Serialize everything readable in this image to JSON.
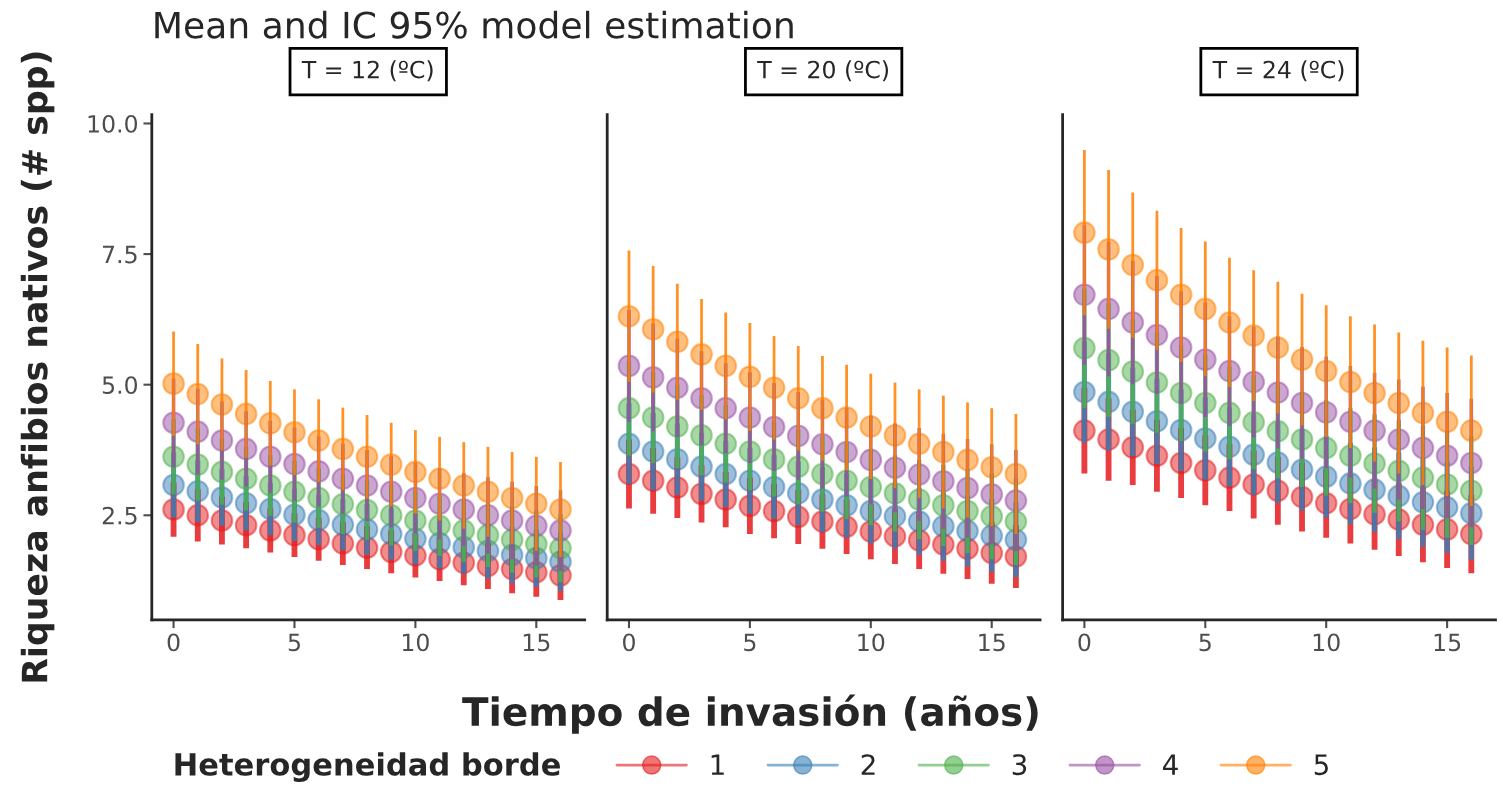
{
  "chart_data": [
    {
      "type": "scatter",
      "title": "Mean and IC 95% model estimation",
      "subtitle": "T = 12 (ºC)",
      "ylabel": "Riqueza anfibios nativos (# spp)",
      "legend_title": "Heterogeneidad borde",
      "legend": "bottom",
      "marker": "circle",
      "grid": false,
      "x": [
        0,
        1,
        2,
        3,
        4,
        5,
        6,
        7,
        8,
        9,
        10,
        11,
        12,
        13,
        14,
        15,
        16
      ],
      "xlim": [
        -0.9,
        17
      ],
      "xticks": [
        0,
        5,
        10,
        15
      ],
      "ylim": [
        0.5,
        10.17
      ],
      "yticks": [
        {
          "value": 2.5,
          "label": "2.5"
        },
        {
          "value": 5,
          "label": "5.0"
        },
        {
          "value": 7.5,
          "label": "7.5"
        },
        {
          "value": 10,
          "label": "10.0"
        }
      ],
      "series": [
        {
          "name": "1",
          "color": "#e41a1c",
          "values": [
            2.61,
            2.5,
            2.4,
            2.31,
            2.21,
            2.12,
            2.04,
            1.96,
            1.88,
            1.8,
            1.73,
            1.66,
            1.59,
            1.53,
            1.47,
            1.41,
            1.35
          ],
          "errors": [
            0.52,
            0.5,
            0.46,
            0.44,
            0.42,
            0.42,
            0.41,
            0.41,
            0.41,
            0.41,
            0.42,
            0.42,
            0.43,
            0.44,
            0.46,
            0.47,
            0.47
          ]
        },
        {
          "name": "2",
          "color": "#377eb8",
          "values": [
            3.08,
            2.96,
            2.84,
            2.73,
            2.62,
            2.51,
            2.41,
            2.32,
            2.23,
            2.14,
            2.05,
            1.97,
            1.89,
            1.82,
            1.74,
            1.68,
            1.61
          ],
          "errors": [
            0.62,
            0.59,
            0.54,
            0.52,
            0.5,
            0.5,
            0.48,
            0.49,
            0.49,
            0.49,
            0.49,
            0.49,
            0.51,
            0.53,
            0.54,
            0.55,
            0.56
          ]
        },
        {
          "name": "3",
          "color": "#4daf4a",
          "values": [
            3.62,
            3.47,
            3.33,
            3.2,
            3.07,
            2.95,
            2.83,
            2.71,
            2.6,
            2.5,
            2.4,
            2.3,
            2.21,
            2.12,
            2.03,
            1.95,
            1.87
          ],
          "errors": [
            0.72,
            0.69,
            0.63,
            0.61,
            0.58,
            0.59,
            0.57,
            0.57,
            0.57,
            0.58,
            0.58,
            0.58,
            0.6,
            0.61,
            0.63,
            0.64,
            0.65
          ]
        },
        {
          "name": "4",
          "color": "#984ea3",
          "values": [
            4.27,
            4.1,
            3.93,
            3.77,
            3.62,
            3.48,
            3.34,
            3.2,
            3.07,
            2.95,
            2.83,
            2.72,
            2.61,
            2.5,
            2.4,
            2.3,
            2.21
          ],
          "errors": [
            0.85,
            0.82,
            0.75,
            0.72,
            0.69,
            0.7,
            0.67,
            0.67,
            0.68,
            0.68,
            0.68,
            0.68,
            0.7,
            0.73,
            0.74,
            0.76,
            0.77
          ]
        },
        {
          "name": "5",
          "color": "#ff7f00",
          "values": [
            5.02,
            4.82,
            4.62,
            4.44,
            4.26,
            4.09,
            3.93,
            3.77,
            3.62,
            3.47,
            3.33,
            3.2,
            3.07,
            2.95,
            2.83,
            2.72,
            2.61
          ],
          "errors": [
            1.0,
            0.96,
            0.88,
            0.84,
            0.81,
            0.82,
            0.79,
            0.79,
            0.8,
            0.8,
            0.8,
            0.8,
            0.83,
            0.86,
            0.88,
            0.9,
            0.91
          ]
        }
      ]
    },
    {
      "type": "scatter",
      "subtitle": "T = 20 (ºC)",
      "xlabel": "Tiempo de invasión (años)",
      "marker": "circle",
      "grid": false,
      "tick_labels": "x",
      "x": [
        0,
        1,
        2,
        3,
        4,
        5,
        6,
        7,
        8,
        9,
        10,
        11,
        12,
        13,
        14,
        15,
        16
      ],
      "xlim": [
        -0.9,
        17
      ],
      "xticks": [
        0,
        5,
        10,
        15
      ],
      "ylim": [
        0.5,
        10.17
      ],
      "series": [
        {
          "color": "#e41a1c",
          "values": [
            3.29,
            3.16,
            3.03,
            2.91,
            2.8,
            2.68,
            2.58,
            2.47,
            2.38,
            2.28,
            2.19,
            2.1,
            2.02,
            1.94,
            1.86,
            1.78,
            1.71
          ],
          "errors": [
            0.66,
            0.63,
            0.58,
            0.55,
            0.53,
            0.54,
            0.52,
            0.52,
            0.52,
            0.52,
            0.53,
            0.53,
            0.55,
            0.56,
            0.58,
            0.59,
            0.6
          ]
        },
        {
          "color": "#377eb8",
          "values": [
            3.87,
            3.72,
            3.57,
            3.43,
            3.29,
            3.16,
            3.04,
            2.92,
            2.8,
            2.69,
            2.58,
            2.48,
            2.38,
            2.29,
            2.2,
            2.11,
            2.03
          ],
          "errors": [
            0.77,
            0.74,
            0.68,
            0.65,
            0.63,
            0.63,
            0.61,
            0.61,
            0.62,
            0.62,
            0.62,
            0.62,
            0.64,
            0.66,
            0.68,
            0.7,
            0.71
          ]
        },
        {
          "color": "#4daf4a",
          "values": [
            4.55,
            4.37,
            4.2,
            4.03,
            3.87,
            3.72,
            3.57,
            3.43,
            3.29,
            3.16,
            3.04,
            2.92,
            2.8,
            2.69,
            2.58,
            2.48,
            2.38
          ],
          "errors": [
            0.91,
            0.87,
            0.8,
            0.77,
            0.74,
            0.74,
            0.71,
            0.72,
            0.72,
            0.73,
            0.73,
            0.73,
            0.76,
            0.78,
            0.8,
            0.82,
            0.83
          ]
        },
        {
          "color": "#984ea3",
          "values": [
            5.36,
            5.14,
            4.94,
            4.74,
            4.55,
            4.37,
            4.19,
            4.02,
            3.86,
            3.71,
            3.56,
            3.41,
            3.28,
            3.15,
            3.02,
            2.9,
            2.78
          ],
          "errors": [
            1.07,
            1.03,
            0.94,
            0.9,
            0.86,
            0.87,
            0.84,
            0.84,
            0.85,
            0.85,
            0.85,
            0.85,
            0.89,
            0.91,
            0.94,
            0.96,
            0.97
          ]
        },
        {
          "color": "#ff7f00",
          "values": [
            6.31,
            6.06,
            5.82,
            5.58,
            5.36,
            5.15,
            4.94,
            4.74,
            4.55,
            4.37,
            4.2,
            4.03,
            3.87,
            3.71,
            3.56,
            3.42,
            3.29
          ],
          "errors": [
            1.26,
            1.21,
            1.11,
            1.06,
            1.02,
            1.03,
            0.99,
            1.0,
            1.0,
            1.01,
            1.01,
            1.01,
            1.04,
            1.08,
            1.1,
            1.13,
            1.15
          ]
        }
      ]
    },
    {
      "type": "scatter",
      "subtitle": "T = 24 (ºC)",
      "marker": "circle",
      "grid": false,
      "tick_labels": "x",
      "x": [
        0,
        1,
        2,
        3,
        4,
        5,
        6,
        7,
        8,
        9,
        10,
        11,
        12,
        13,
        14,
        15,
        16
      ],
      "xlim": [
        -0.9,
        17
      ],
      "xticks": [
        0,
        5,
        10,
        15
      ],
      "ylim": [
        0.5,
        10.17
      ],
      "series": [
        {
          "color": "#e41a1c",
          "values": [
            4.12,
            3.95,
            3.8,
            3.64,
            3.5,
            3.36,
            3.22,
            3.09,
            2.97,
            2.85,
            2.73,
            2.62,
            2.52,
            2.42,
            2.32,
            2.23,
            2.14
          ],
          "errors": [
            0.82,
            0.79,
            0.72,
            0.69,
            0.67,
            0.67,
            0.64,
            0.65,
            0.65,
            0.66,
            0.66,
            0.66,
            0.68,
            0.7,
            0.72,
            0.74,
            0.75
          ]
        },
        {
          "color": "#377eb8",
          "values": [
            4.86,
            4.67,
            4.48,
            4.3,
            4.13,
            3.97,
            3.81,
            3.66,
            3.51,
            3.37,
            3.24,
            3.11,
            2.99,
            2.87,
            2.75,
            2.65,
            2.54
          ],
          "errors": [
            0.97,
            0.93,
            0.85,
            0.82,
            0.78,
            0.79,
            0.76,
            0.77,
            0.77,
            0.78,
            0.78,
            0.78,
            0.81,
            0.83,
            0.85,
            0.87,
            0.89
          ]
        },
        {
          "color": "#4daf4a",
          "values": [
            5.7,
            5.47,
            5.25,
            5.04,
            4.84,
            4.65,
            4.46,
            4.28,
            4.11,
            3.95,
            3.79,
            3.64,
            3.49,
            3.35,
            3.22,
            3.09,
            2.97
          ],
          "errors": [
            1.14,
            1.09,
            1.0,
            0.96,
            0.92,
            0.93,
            0.89,
            0.9,
            0.9,
            0.91,
            0.91,
            0.91,
            0.94,
            0.97,
            1.0,
            1.02,
            1.04
          ]
        },
        {
          "color": "#984ea3",
          "values": [
            6.72,
            6.45,
            6.19,
            5.95,
            5.71,
            5.48,
            5.26,
            5.05,
            4.85,
            4.65,
            4.47,
            4.29,
            4.12,
            3.95,
            3.79,
            3.64,
            3.5
          ],
          "errors": [
            1.34,
            1.29,
            1.18,
            1.13,
            1.08,
            1.1,
            1.05,
            1.06,
            1.07,
            1.07,
            1.07,
            1.07,
            1.11,
            1.15,
            1.17,
            1.2,
            1.23
          ]
        },
        {
          "color": "#ff7f00",
          "values": [
            7.91,
            7.59,
            7.29,
            7.0,
            6.72,
            6.45,
            6.19,
            5.94,
            5.71,
            5.48,
            5.26,
            5.05,
            4.84,
            4.65,
            4.46,
            4.29,
            4.12
          ],
          "errors": [
            1.58,
            1.52,
            1.39,
            1.33,
            1.28,
            1.29,
            1.24,
            1.25,
            1.26,
            1.26,
            1.26,
            1.26,
            1.31,
            1.35,
            1.38,
            1.42,
            1.44
          ]
        }
      ]
    }
  ]
}
